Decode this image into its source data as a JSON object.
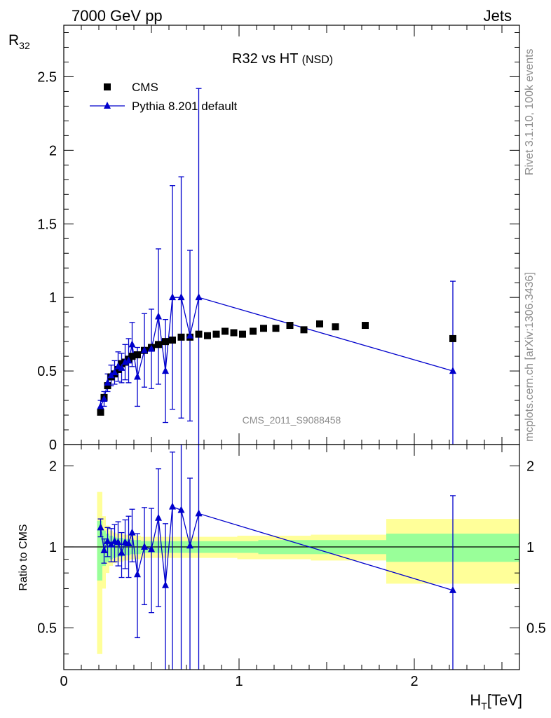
{
  "header": {
    "left": "7000 GeV pp",
    "right": "Jets",
    "title": "R32 vs HT",
    "title_suffix": "(NSD)",
    "watermark": "CMS_2011_S9088458"
  },
  "side_labels": {
    "rivet": "Rivet 3.1.10,  100k events",
    "site": "mcplots.cern.ch [arXiv:1306.3436]"
  },
  "colors": {
    "data": "#000000",
    "mc": "#0000cc",
    "band_inner": "#99ff99",
    "band_outer": "#ffff99"
  },
  "chart_data": [
    {
      "type": "scatter",
      "title": "R32 vs HT",
      "ylabel_main": "R",
      "ylabel_sub": "32",
      "xlim": [
        0,
        2.6
      ],
      "ylim": [
        0,
        2.85
      ],
      "yticks": [
        {
          "v": 0,
          "label": "0"
        },
        {
          "v": 0.5,
          "label": "0.5"
        },
        {
          "v": 1,
          "label": "1"
        },
        {
          "v": 1.5,
          "label": "1.5"
        },
        {
          "v": 2,
          "label": "2"
        },
        {
          "v": 2.5,
          "label": "2.5"
        }
      ],
      "legend": {
        "position": "top-left",
        "entries": [
          "CMS",
          "Pythia 8.201 default"
        ]
      },
      "series": [
        {
          "name": "CMS",
          "marker": "square",
          "x": [
            0.21,
            0.23,
            0.25,
            0.27,
            0.29,
            0.31,
            0.33,
            0.35,
            0.37,
            0.39,
            0.42,
            0.46,
            0.5,
            0.54,
            0.58,
            0.62,
            0.67,
            0.72,
            0.77,
            0.82,
            0.87,
            0.92,
            0.97,
            1.02,
            1.08,
            1.14,
            1.21,
            1.29,
            1.37,
            1.46,
            1.55,
            1.72,
            2.22
          ],
          "y": [
            0.22,
            0.32,
            0.4,
            0.46,
            0.48,
            0.51,
            0.55,
            0.56,
            0.58,
            0.6,
            0.61,
            0.64,
            0.66,
            0.68,
            0.7,
            0.71,
            0.73,
            0.73,
            0.75,
            0.74,
            0.75,
            0.77,
            0.76,
            0.75,
            0.77,
            0.79,
            0.79,
            0.81,
            0.78,
            0.82,
            0.8,
            0.81,
            0.72
          ]
        },
        {
          "name": "Pythia 8.201 default",
          "marker": "triangle",
          "x": [
            0.21,
            0.23,
            0.25,
            0.27,
            0.29,
            0.31,
            0.33,
            0.35,
            0.37,
            0.39,
            0.42,
            0.46,
            0.5,
            0.54,
            0.58,
            0.62,
            0.67,
            0.72,
            0.77,
            2.22
          ],
          "y": [
            0.26,
            0.31,
            0.42,
            0.47,
            0.49,
            0.53,
            0.52,
            0.56,
            0.57,
            0.68,
            0.46,
            0.64,
            0.65,
            0.87,
            0.5,
            1.0,
            1.0,
            0.74,
            1.0,
            0.5
          ],
          "yerr": [
            0.04,
            0.05,
            0.06,
            0.07,
            0.08,
            0.1,
            0.1,
            0.12,
            0.15,
            0.15,
            0.2,
            0.25,
            0.27,
            0.46,
            0.35,
            0.76,
            0.82,
            0.58,
            1.42,
            0.61
          ]
        }
      ]
    },
    {
      "type": "scatter",
      "ylabel": "Ratio to CMS",
      "xlabel_main": "H",
      "xlabel_sub": "T",
      "xlabel_unit": "[TeV]",
      "xlim": [
        0,
        2.6
      ],
      "ylim": [
        0.35,
        2.4
      ],
      "ylog": true,
      "xticks": [
        {
          "v": 0,
          "label": "0"
        },
        {
          "v": 1,
          "label": "1"
        },
        {
          "v": 2,
          "label": "2"
        }
      ],
      "yticks": [
        {
          "v": 0.5,
          "label": "0.5"
        },
        {
          "v": 1,
          "label": "1"
        },
        {
          "v": 2,
          "label": "2"
        }
      ],
      "bands": {
        "edges": [
          0.19,
          0.22,
          0.24,
          0.26,
          0.28,
          0.3,
          0.32,
          0.34,
          0.36,
          0.38,
          0.4,
          0.44,
          0.48,
          0.52,
          0.56,
          0.6,
          0.64,
          0.69,
          0.74,
          0.79,
          0.84,
          0.89,
          0.94,
          0.99,
          1.05,
          1.11,
          1.17,
          1.24,
          1.33,
          1.41,
          1.5,
          1.59,
          1.84,
          2.6
        ],
        "inner_half": [
          0.25,
          0.15,
          0.12,
          0.1,
          0.09,
          0.08,
          0.08,
          0.07,
          0.07,
          0.06,
          0.06,
          0.05,
          0.05,
          0.05,
          0.05,
          0.05,
          0.05,
          0.05,
          0.05,
          0.05,
          0.05,
          0.05,
          0.05,
          0.05,
          0.05,
          0.06,
          0.06,
          0.06,
          0.06,
          0.06,
          0.06,
          0.06,
          0.12
        ],
        "outer_half": [
          0.6,
          0.3,
          0.2,
          0.15,
          0.13,
          0.12,
          0.12,
          0.11,
          0.11,
          0.1,
          0.1,
          0.09,
          0.09,
          0.09,
          0.09,
          0.09,
          0.09,
          0.09,
          0.09,
          0.09,
          0.09,
          0.09,
          0.09,
          0.1,
          0.1,
          0.1,
          0.1,
          0.1,
          0.1,
          0.11,
          0.11,
          0.11,
          0.27
        ]
      },
      "series": [
        {
          "name": "Pythia 8.201 default",
          "marker": "triangle",
          "x": [
            0.21,
            0.23,
            0.25,
            0.27,
            0.29,
            0.31,
            0.33,
            0.35,
            0.37,
            0.39,
            0.42,
            0.46,
            0.5,
            0.54,
            0.58,
            0.62,
            0.67,
            0.72,
            0.77,
            2.22
          ],
          "y": [
            1.18,
            0.97,
            1.05,
            1.02,
            1.05,
            1.04,
            0.95,
            1.04,
            1.03,
            1.13,
            0.79,
            1.0,
            0.98,
            1.28,
            0.72,
            1.41,
            1.37,
            1.01,
            1.33,
            0.69
          ],
          "ylow": [
            1.09,
            0.87,
            0.92,
            0.88,
            0.88,
            0.85,
            0.77,
            0.83,
            0.77,
            0.88,
            0.46,
            0.61,
            0.57,
            0.6,
            0.25,
            0.25,
            0.25,
            0.25,
            0.25,
            0.25
          ],
          "yhigh": [
            1.27,
            1.07,
            1.18,
            1.17,
            1.21,
            1.24,
            1.13,
            1.26,
            1.3,
            1.38,
            1.12,
            1.4,
            1.39,
            1.95,
            1.22,
            2.25,
            2.55,
            1.8,
            3.0,
            1.55
          ]
        }
      ]
    }
  ]
}
